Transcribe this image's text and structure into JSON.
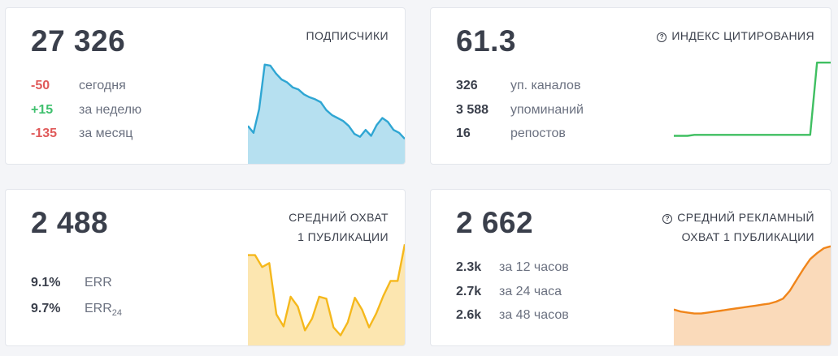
{
  "cards": {
    "subscribers": {
      "value": "27 326",
      "title": "ПОДПИСЧИКИ",
      "stats": [
        {
          "value": "-50",
          "label": "сегодня"
        },
        {
          "value": "+15",
          "label": "за неделю"
        },
        {
          "value": "-135",
          "label": "за месяц"
        }
      ]
    },
    "citation": {
      "value": "61.3",
      "title": "ИНДЕКС ЦИТИРОВАНИЯ",
      "stats": [
        {
          "value": "326",
          "label": "уп. каналов"
        },
        {
          "value": "3 588",
          "label": "упоминаний"
        },
        {
          "value": "16",
          "label": "репостов"
        }
      ]
    },
    "reach": {
      "value": "2 488",
      "title_line1": "СРЕДНИЙ ОХВАТ",
      "title_line2": "1 ПУБЛИКАЦИИ",
      "stats": [
        {
          "value": "9.1%",
          "label": "ERR"
        },
        {
          "value": "9.7%",
          "label": "ERR",
          "sub": "24"
        }
      ]
    },
    "ad_reach": {
      "value": "2 662",
      "title_line1": "СРЕДНИЙ РЕКЛАМНЫЙ",
      "title_line2": "ОХВАТ 1 ПУБЛИКАЦИИ",
      "stats": [
        {
          "value": "2.3k",
          "label": "за 12 часов"
        },
        {
          "value": "2.7k",
          "label": "за 24 часа"
        },
        {
          "value": "2.6k",
          "label": "за 48 часов"
        }
      ]
    }
  },
  "colors": {
    "negative": "#e05a5a",
    "positive": "#3fc06e",
    "subscribers_line": "#2fa6d3",
    "citation_line": "#3fbf61",
    "reach_line": "#f5b81c",
    "ad_reach_line": "#f0851a"
  },
  "icons": {
    "citation_title": "help-circle-icon",
    "ad_reach_title": "help-circle-icon"
  },
  "sparklines": {
    "subscribers": [
      35,
      28,
      52,
      97,
      96,
      88,
      82,
      79,
      74,
      72,
      67,
      64,
      62,
      59,
      51,
      46,
      43,
      40,
      35,
      27,
      24,
      31,
      25,
      36,
      43,
      39,
      31,
      28,
      22
    ],
    "citation": [
      25,
      25,
      25,
      26,
      26,
      26,
      26,
      26,
      26,
      26,
      26,
      26,
      26,
      26,
      26,
      26,
      26,
      26,
      26,
      26,
      26,
      99,
      99,
      99
    ],
    "reach": [
      88,
      88,
      76,
      80,
      28,
      16,
      46,
      36,
      12,
      24,
      46,
      44,
      15,
      7,
      20,
      45,
      33,
      15,
      29,
      47,
      62,
      62,
      99
    ],
    "ad_reach": [
      33,
      31,
      30,
      29,
      29,
      30,
      31,
      32,
      33,
      34,
      35,
      36,
      37,
      38,
      39,
      41,
      44,
      52,
      63,
      74,
      84,
      90,
      95,
      97
    ]
  }
}
